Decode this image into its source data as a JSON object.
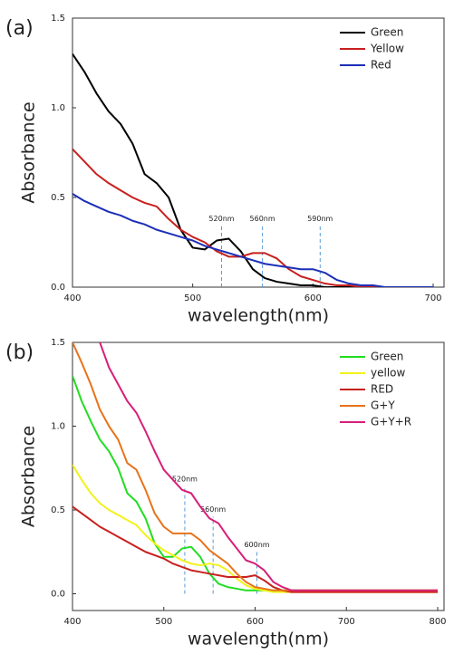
{
  "chart_data": [
    {
      "type": "line",
      "panel_label": "(a)",
      "x_label": "wavelength(nm)",
      "y_label": "Absorbance",
      "xlim": [
        400,
        700
      ],
      "xticks": [
        400,
        500,
        600,
        700
      ],
      "ylim": [
        0,
        1.5
      ],
      "yticks": [
        {
          "value": 0,
          "label": "0.0"
        },
        {
          "value": 0.5,
          "label": "0.5"
        },
        {
          "value": 1.0,
          "label": "1.0"
        },
        {
          "value": 1.5,
          "label": "1.5"
        }
      ],
      "legend": "upper right",
      "x": [
        400,
        410,
        420,
        430,
        440,
        450,
        460,
        470,
        480,
        490,
        500,
        510,
        520,
        530,
        540,
        550,
        560,
        570,
        580,
        590,
        600,
        610,
        620,
        630,
        640,
        650,
        660,
        670,
        680,
        690,
        700
      ],
      "series": [
        {
          "name": "Green",
          "color": "#000000",
          "values": [
            1.3,
            1.2,
            1.08,
            0.98,
            0.91,
            0.8,
            0.63,
            0.58,
            0.5,
            0.32,
            0.22,
            0.21,
            0.26,
            0.27,
            0.2,
            0.1,
            0.05,
            0.03,
            0.02,
            0.01,
            0.01,
            0,
            0,
            0,
            0,
            0,
            0,
            0,
            0,
            0,
            0
          ]
        },
        {
          "name": "Yellow",
          "color": "#c8201e",
          "values": [
            0.77,
            0.7,
            0.63,
            0.58,
            0.54,
            0.5,
            0.47,
            0.45,
            0.38,
            0.32,
            0.28,
            0.25,
            0.2,
            0.17,
            0.17,
            0.19,
            0.19,
            0.16,
            0.1,
            0.06,
            0.04,
            0.02,
            0.01,
            0.01,
            0,
            0,
            0,
            0,
            0,
            0,
            0
          ]
        },
        {
          "name": "Red",
          "color": "#1c2fb8",
          "values": [
            0.52,
            0.48,
            0.45,
            0.42,
            0.4,
            0.37,
            0.35,
            0.32,
            0.3,
            0.28,
            0.26,
            0.23,
            0.21,
            0.19,
            0.17,
            0.15,
            0.13,
            0.12,
            0.11,
            0.1,
            0.1,
            0.08,
            0.04,
            0.02,
            0.01,
            0.01,
            0,
            0,
            0,
            0,
            0
          ]
        }
      ],
      "annotations": [
        {
          "text": "520nm",
          "x": 524,
          "y": 0.34
        },
        {
          "text": "560nm",
          "x": 558,
          "y": 0.34
        },
        {
          "text": "590nm",
          "x": 606,
          "y": 0.34
        }
      ]
    },
    {
      "type": "line",
      "panel_label": "(b)",
      "x_label": "wavelength(nm)",
      "y_label": "Absorbance",
      "xlim": [
        400,
        800
      ],
      "xticks": [
        400,
        500,
        600,
        700,
        800
      ],
      "ylim": [
        -0.1,
        1.5
      ],
      "yticks": [
        {
          "value": 0,
          "label": "0.0"
        },
        {
          "value": 0.5,
          "label": "0.5"
        },
        {
          "value": 1.0,
          "label": "1.0"
        },
        {
          "value": 1.5,
          "label": "1.5"
        }
      ],
      "legend": "upper right",
      "x": [
        400,
        410,
        420,
        430,
        440,
        450,
        460,
        470,
        480,
        490,
        500,
        510,
        520,
        530,
        540,
        550,
        560,
        570,
        580,
        590,
        600,
        610,
        620,
        630,
        640,
        650,
        660,
        670,
        680,
        690,
        700,
        710,
        720,
        730,
        740,
        750,
        760,
        770,
        780,
        790,
        800
      ],
      "series": [
        {
          "name": "Green",
          "color": "#22dd22",
          "values": [
            1.3,
            1.15,
            1.03,
            0.92,
            0.85,
            0.75,
            0.6,
            0.55,
            0.45,
            0.3,
            0.22,
            0.22,
            0.27,
            0.28,
            0.22,
            0.12,
            0.06,
            0.04,
            0.03,
            0.02,
            0.02,
            0.02,
            0.02,
            0.02,
            0.02,
            0.02,
            0.02,
            0.02,
            0.02,
            0.02,
            0.02,
            0.02,
            0.02,
            0.02,
            0.02,
            0.02,
            0.02,
            0.02,
            0.02,
            0.02,
            0.02
          ]
        },
        {
          "name": "yellow",
          "color": "#f2f21a",
          "values": [
            0.77,
            0.68,
            0.6,
            0.54,
            0.5,
            0.47,
            0.44,
            0.41,
            0.35,
            0.3,
            0.26,
            0.23,
            0.2,
            0.18,
            0.17,
            0.18,
            0.17,
            0.14,
            0.09,
            0.05,
            0.03,
            0.02,
            0.01,
            0.01,
            0.01,
            0.01,
            0.01,
            0.01,
            0.01,
            0.01,
            0.01,
            0.01,
            0.01,
            0.01,
            0.01,
            0.01,
            0.01,
            0.01,
            0.01,
            0.01,
            0.01
          ]
        },
        {
          "name": "RED",
          "color": "#c8201e",
          "values": [
            0.52,
            0.48,
            0.44,
            0.4,
            0.37,
            0.34,
            0.31,
            0.28,
            0.25,
            0.23,
            0.21,
            0.18,
            0.16,
            0.14,
            0.13,
            0.12,
            0.11,
            0.1,
            0.1,
            0.1,
            0.11,
            0.08,
            0.04,
            0.02,
            0.01,
            0.01,
            0.01,
            0.01,
            0.01,
            0.01,
            0.01,
            0.01,
            0.01,
            0.01,
            0.01,
            0.01,
            0.01,
            0.01,
            0.01,
            0.01,
            0.01
          ]
        },
        {
          "name": "G+Y",
          "color": "#e8731a",
          "values": [
            1.5,
            1.38,
            1.25,
            1.1,
            1.0,
            0.92,
            0.78,
            0.74,
            0.62,
            0.48,
            0.4,
            0.36,
            0.36,
            0.36,
            0.32,
            0.26,
            0.22,
            0.18,
            0.12,
            0.07,
            0.04,
            0.03,
            0.02,
            0.02,
            0.02,
            0.02,
            0.02,
            0.02,
            0.02,
            0.02,
            0.02,
            0.02,
            0.02,
            0.02,
            0.02,
            0.02,
            0.02,
            0.02,
            0.02,
            0.02,
            0.02
          ]
        },
        {
          "name": "G+Y+R",
          "color": "#d81f78",
          "values": [
            1.85,
            1.72,
            1.6,
            1.5,
            1.35,
            1.25,
            1.15,
            1.08,
            0.97,
            0.85,
            0.74,
            0.68,
            0.62,
            0.6,
            0.52,
            0.45,
            0.42,
            0.34,
            0.27,
            0.2,
            0.18,
            0.14,
            0.07,
            0.04,
            0.02,
            0.02,
            0.02,
            0.02,
            0.02,
            0.02,
            0.02,
            0.02,
            0.02,
            0.02,
            0.02,
            0.02,
            0.02,
            0.02,
            0.02,
            0.02,
            0.02
          ]
        }
      ],
      "annotations": [
        {
          "text": "520nm",
          "x": 523,
          "y": 0.64
        },
        {
          "text": "560nm",
          "x": 554,
          "y": 0.46
        },
        {
          "text": "600nm",
          "x": 602,
          "y": 0.25
        }
      ]
    }
  ]
}
